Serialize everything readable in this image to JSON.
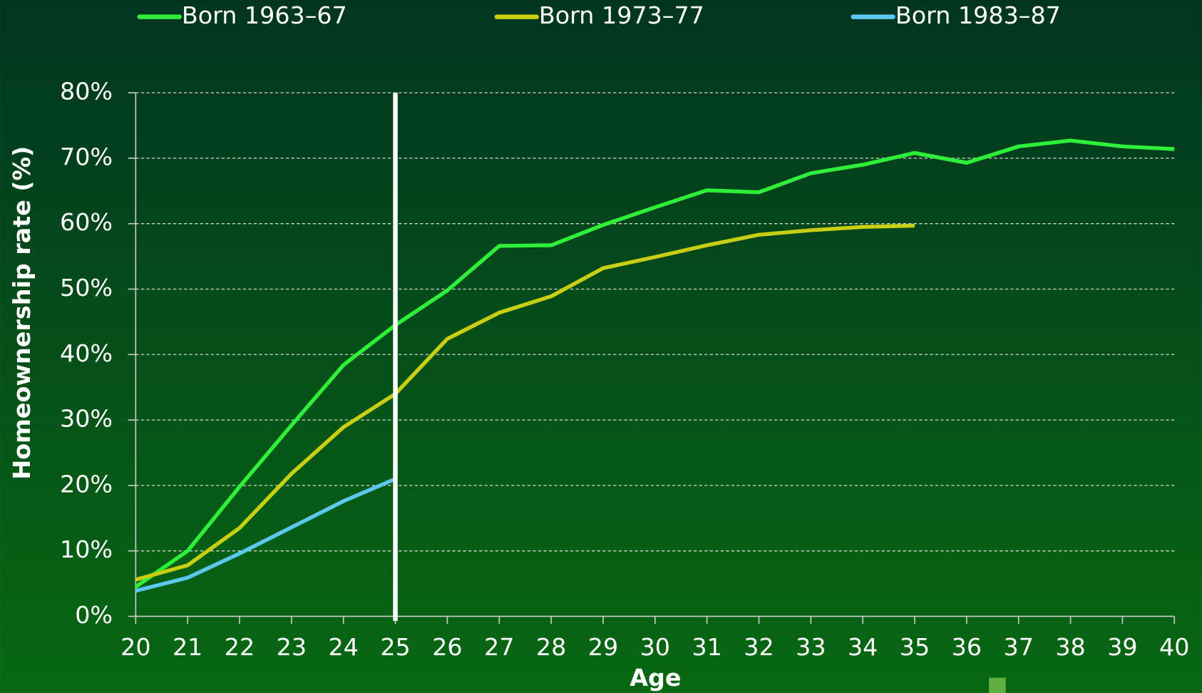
{
  "chart_data": {
    "type": "line",
    "x_label": "Age",
    "y_label": "Homeownership rate (%)",
    "x": [
      20,
      21,
      22,
      23,
      24,
      25,
      26,
      27,
      28,
      29,
      30,
      31,
      32,
      33,
      34,
      35,
      36,
      37,
      38,
      39,
      40
    ],
    "series": [
      {
        "name": "Born 1963–67",
        "color": "#2ef03a",
        "values": [
          4.5,
          10,
          19.8,
          29.2,
          38.4,
          44.5,
          49.8,
          56.6,
          56.7,
          59.8,
          62.5,
          65.1,
          64.8,
          67.7,
          69,
          70.8,
          69.3,
          71.8,
          72.7,
          71.8,
          71.4
        ]
      },
      {
        "name": "Born 1973–77",
        "color": "#c8cf12",
        "values": [
          5.6,
          7.8,
          13.5,
          21.8,
          28.9,
          34,
          42.4,
          46.4,
          48.9,
          53.2,
          54.9,
          56.7,
          58.3,
          59,
          59.5,
          59.7,
          null,
          null,
          null,
          null,
          null
        ]
      },
      {
        "name": "Born 1983–87",
        "color": "#5cc8f0",
        "values": [
          3.9,
          5.9,
          9.6,
          13.6,
          17.6,
          21,
          null,
          null,
          null,
          null,
          null,
          null,
          null,
          null,
          null,
          null,
          null,
          null,
          null,
          null,
          null
        ]
      }
    ],
    "xlim": [
      20,
      40
    ],
    "xticks": [
      20,
      21,
      22,
      23,
      24,
      25,
      26,
      27,
      28,
      29,
      30,
      31,
      32,
      33,
      34,
      35,
      36,
      37,
      38,
      39,
      40
    ],
    "ylim": [
      0,
      80
    ],
    "yticks": [
      {
        "value": 0,
        "label": "0%"
      },
      {
        "value": 10,
        "label": "10%"
      },
      {
        "value": 20,
        "label": "20%"
      },
      {
        "value": 30,
        "label": "30%"
      },
      {
        "value": 40,
        "label": "40%"
      },
      {
        "value": 50,
        "label": "50%"
      },
      {
        "value": 60,
        "label": "60%"
      },
      {
        "value": 70,
        "label": "70%"
      },
      {
        "value": 80,
        "label": "80%"
      }
    ],
    "marker_x": 25,
    "grid": true,
    "legend": "top"
  }
}
